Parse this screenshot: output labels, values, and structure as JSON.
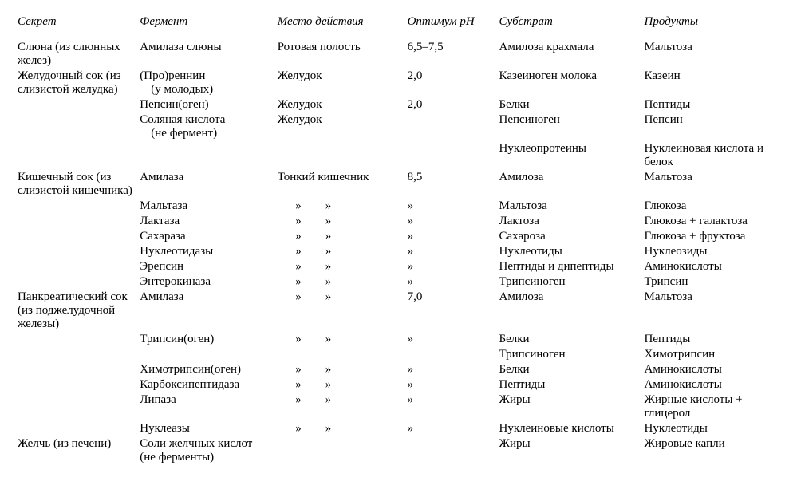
{
  "columns": [
    "Секрет",
    "Фермент",
    "Место действия",
    "Оптимум pH",
    "Субстрат",
    "Продукты"
  ],
  "col_widths": [
    "16%",
    "18%",
    "17%",
    "12%",
    "19%",
    "18%"
  ],
  "rows": [
    [
      "Слюна (из слюнных желез)",
      "Амилаза слюны",
      "Ротовая полость",
      "6,5–7,5",
      "Амилоза крахмала",
      "Мальтоза"
    ],
    [
      "Желудочный сок (из слизистой желудка)",
      "(Про)реннин\n(у молодых)",
      "Желудок",
      "2,0",
      "Казеиноген молока",
      "Казеин"
    ],
    [
      "",
      "Пепсин(оген)",
      "Желудок",
      "2,0",
      "Белки",
      "Пептиды"
    ],
    [
      "",
      "Соляная кислота\n(не фермент)",
      "Желудок",
      "",
      "Пепсиноген",
      "Пепсин"
    ],
    [
      "",
      "",
      "",
      "",
      "Нуклеопротеины",
      "Нуклеиновая кислота и белок"
    ],
    [
      "Кишечный сок (из слизистой кишечника)",
      "Амилаза",
      "Тонкий кишечник",
      "8,5",
      "Амилоза",
      "Мальтоза"
    ],
    [
      "",
      "Мальтаза",
      "»        »",
      "»",
      "Мальтоза",
      "Глюкоза"
    ],
    [
      "",
      "Лактаза",
      "»        »",
      "»",
      "Лактоза",
      "Глюкоза + галактоза"
    ],
    [
      "",
      "Сахараза",
      "»        »",
      "»",
      "Сахароза",
      "Глюкоза + фруктоза"
    ],
    [
      "",
      "Нуклеотидазы",
      "»        »",
      "»",
      "Нуклеотиды",
      "Нуклеозиды"
    ],
    [
      "",
      "Эрепсин",
      "»        »",
      "»",
      "Пептиды и дипептиды",
      "Аминокислоты"
    ],
    [
      "",
      "Энтерокиназа",
      "»        »",
      "»",
      "Трипсиноген",
      "Трипсин"
    ],
    [
      "Панкреатический сок (из поджелудочной железы)",
      "Амилаза",
      "»        »",
      "7,0",
      "Амилоза",
      "Мальтоза"
    ],
    [
      "",
      "Трипсин(оген)",
      "»        »",
      "»",
      "Белки",
      "Пептиды"
    ],
    [
      "",
      "",
      "",
      "",
      "Трипсиноген",
      "Химотрипсин"
    ],
    [
      "",
      "Химотрипсин(оген)",
      "»        »",
      "»",
      "Белки",
      "Аминокислоты"
    ],
    [
      "",
      "Карбоксипептидаза",
      "»        »",
      "»",
      "Пептиды",
      "Аминокислоты"
    ],
    [
      "",
      "Липаза",
      "»        »",
      "»",
      "Жиры",
      "Жирные кислоты + глицерол"
    ],
    [
      "",
      "Нуклеазы",
      "»        »",
      "»",
      "Нуклеиновые кислоты",
      "Нуклеотиды"
    ],
    [
      "Желчь (из печени)",
      "Соли желчных кислот (не ферменты)",
      "",
      "",
      "Жиры",
      "Жировые капли"
    ]
  ]
}
